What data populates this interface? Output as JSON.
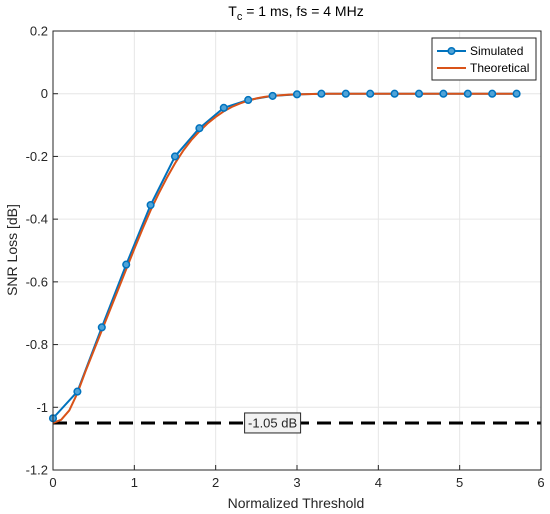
{
  "chart_data": {
    "type": "line",
    "title": {
      "main": "T",
      "sub": "c",
      "rest": " = 1 ms, fs = 4 MHz"
    },
    "xlabel": "Normalized Threshold",
    "ylabel": "SNR Loss [dB]",
    "xlim": [
      0,
      6
    ],
    "ylim": [
      -1.2,
      0.2
    ],
    "xticks": [
      0,
      1,
      2,
      3,
      4,
      5,
      6
    ],
    "yticks": [
      0.2,
      0,
      -0.2,
      -0.4,
      -0.6,
      -0.8,
      -1,
      -1.2
    ],
    "grid": true,
    "legend_position": "top-right",
    "series": [
      {
        "name": "Simulated",
        "color": "#0072BD",
        "marker": "circle",
        "x": [
          0,
          0.3,
          0.6,
          0.9,
          1.2,
          1.5,
          1.8,
          2.1,
          2.4,
          2.7,
          3.0,
          3.3,
          3.6,
          3.9,
          4.2,
          4.5,
          4.8,
          5.1,
          5.4,
          5.7
        ],
        "y": [
          -1.035,
          -0.95,
          -0.745,
          -0.545,
          -0.355,
          -0.2,
          -0.11,
          -0.045,
          -0.02,
          -0.007,
          -0.002,
          0,
          0,
          0,
          0,
          0,
          0,
          0,
          0,
          0
        ]
      },
      {
        "name": "Theoretical",
        "color": "#D95319",
        "marker": "none",
        "x": [
          0,
          0.1,
          0.2,
          0.3,
          0.4,
          0.5,
          0.6,
          0.7,
          0.8,
          0.9,
          1.0,
          1.1,
          1.2,
          1.3,
          1.4,
          1.5,
          1.6,
          1.7,
          1.8,
          1.9,
          2.0,
          2.1,
          2.2,
          2.3,
          2.4,
          2.5,
          2.6,
          2.7,
          2.8,
          2.9,
          3.0,
          3.2,
          3.4,
          3.6,
          3.8,
          4.0,
          4.5,
          5.0,
          5.5,
          5.7
        ],
        "y": [
          -1.05,
          -1.04,
          -1.01,
          -0.955,
          -0.885,
          -0.82,
          -0.755,
          -0.69,
          -0.625,
          -0.56,
          -0.495,
          -0.432,
          -0.372,
          -0.318,
          -0.268,
          -0.222,
          -0.182,
          -0.148,
          -0.12,
          -0.095,
          -0.074,
          -0.056,
          -0.042,
          -0.031,
          -0.022,
          -0.015,
          -0.01,
          -0.007,
          -0.005,
          -0.003,
          -0.002,
          -0.001,
          0,
          0,
          0,
          0,
          0,
          0,
          0,
          0
        ]
      }
    ],
    "reference_line": {
      "y": -1.05,
      "color": "#000000",
      "style": "dashed",
      "label": "-1.05 dB",
      "label_x": 2.7
    }
  }
}
